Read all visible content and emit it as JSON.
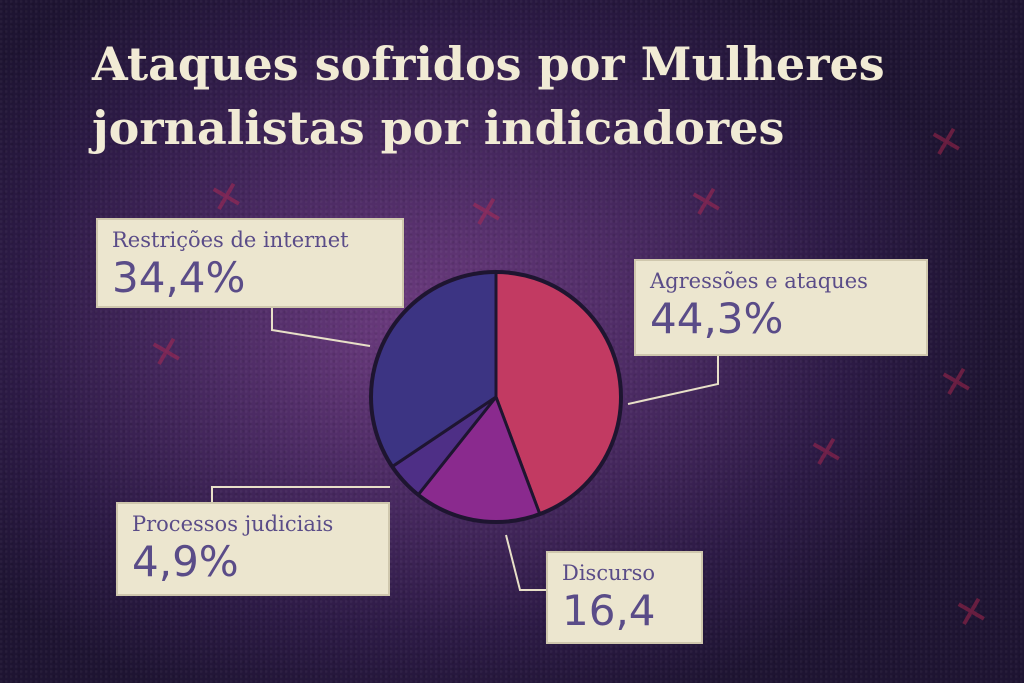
{
  "chart_data": {
    "type": "pie",
    "title": "Ataques sofridos por Mulheres jornalistas por indicadores",
    "title_lines": [
      "Ataques sofridos por Mulheres",
      "jornalistas por indicadores"
    ],
    "slices": [
      {
        "label": "Agressões e ataques",
        "value": 44.3,
        "value_text": "44,3%",
        "color": "#c23a62"
      },
      {
        "label": "Discurso",
        "value": 16.4,
        "value_text": "16,4",
        "color": "#8a2a8e"
      },
      {
        "label": "Processos judiciais",
        "value": 4.9,
        "value_text": "4,9%",
        "color": "#4e2f86"
      },
      {
        "label": "Restrições de internet",
        "value": 34.4,
        "value_text": "34,4%",
        "color": "#3c3483"
      }
    ]
  },
  "colors": {
    "title": "#f1ebd5",
    "label_text": "#5a4c88",
    "label_bg": "#ece6cf",
    "leader_line": "#e8e0c8"
  }
}
